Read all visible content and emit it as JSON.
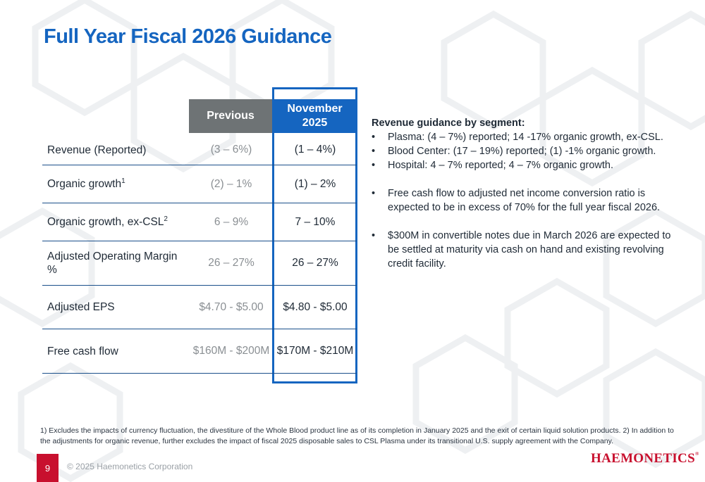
{
  "slide": {
    "title": "Full Year Fiscal 2026 Guidance",
    "page_number": "9",
    "copyright": "© 2025 Haemonetics Corporation",
    "logo_text": "HAEMONETICS",
    "logo_mark": "®",
    "accent_color": "#1565c0",
    "brand_color": "#c8102e"
  },
  "table": {
    "col_previous": "Previous",
    "col_november_line1": "November",
    "col_november_line2": "2025",
    "rows": [
      {
        "label": "Revenue (Reported)",
        "sup": "",
        "previous": "(3 – 6%)",
        "november": "(1 – 4%)"
      },
      {
        "label": "Organic growth",
        "sup": "1",
        "previous": "(2) – 1%",
        "november": "(1) – 2%"
      },
      {
        "label": "Organic growth, ex-CSL",
        "sup": "2",
        "previous": "6 – 9%",
        "november": "7 – 10%"
      },
      {
        "label": "Adjusted Operating Margin %",
        "sup": "",
        "previous": "26 – 27%",
        "november": "26 – 27%"
      },
      {
        "label": "Adjusted EPS",
        "sup": "",
        "previous": "$4.70 - $5.00",
        "november": "$4.80 - $5.00"
      },
      {
        "label": "Free cash flow",
        "sup": "",
        "previous": "$160M - $200M",
        "november": "$170M - $210M"
      }
    ]
  },
  "commentary": {
    "heading": "Revenue guidance by segment:",
    "segments": [
      "Plasma: (4 – 7%) reported; 14 -17% organic growth, ex-CSL.",
      "Blood Center: (17 – 19%) reported; (1) -1% organic growth.",
      "Hospital: 4 – 7% reported; 4 – 7% organic growth."
    ],
    "points": [
      "Free cash flow to adjusted net income conversion ratio is expected to be in excess of 70% for the full year fiscal 2026.",
      "$300M in convertible notes due in March 2026 are expected to be settled at maturity via cash on hand and existing revolving credit facility."
    ]
  },
  "footnote": "1) Excludes the impacts of currency fluctuation, the divestiture of the Whole Blood product line as of its completion in January 2025 and the exit of certain liquid solution products. 2) In addition to the adjustments for organic revenue, further excludes the impact of fiscal 2025 disposable sales to CSL Plasma under its transitional U.S. supply agreement with the Company."
}
